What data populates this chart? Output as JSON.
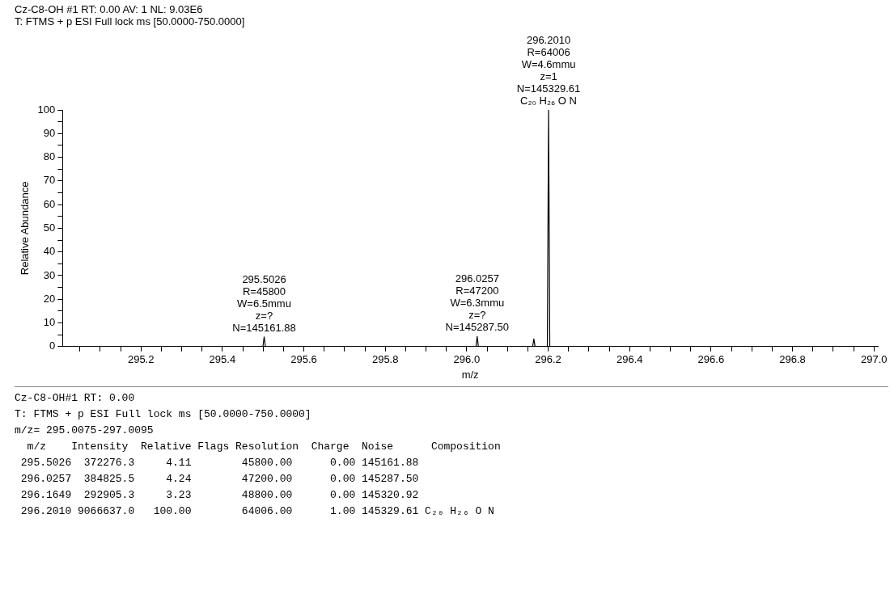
{
  "chart_data": {
    "type": "line",
    "title": "Cz-C8-OH #1  RT: 0.00  AV: 1  NL: 9.03E6",
    "subtitle": "T: FTMS + p ESI Full lock ms [50.0000-750.0000]",
    "xlabel": "m/z",
    "ylabel": "Relative Abundance",
    "x": [
      295.0075,
      295.4996,
      295.5026,
      295.5056,
      296.0227,
      296.0257,
      296.0287,
      296.1619,
      296.1649,
      296.1679,
      296.198,
      296.201,
      296.204,
      297.0095
    ],
    "series": [
      {
        "color": "#000000",
        "values": [
          0,
          0,
          4.11,
          0,
          0,
          4.24,
          0,
          0,
          3.23,
          0,
          0,
          100,
          0,
          0
        ]
      }
    ],
    "xlim": [
      295.0075,
      297.0095
    ],
    "xticks": [
      {
        "value": 295.05,
        "label": null
      },
      {
        "value": 295.1,
        "label": null
      },
      {
        "value": 295.15,
        "label": null
      },
      295.2,
      {
        "value": 295.25,
        "label": null
      },
      {
        "value": 295.3,
        "label": null
      },
      {
        "value": 295.35,
        "label": null
      },
      295.4,
      {
        "value": 295.45,
        "label": null
      },
      {
        "value": 295.5,
        "label": null
      },
      {
        "value": 295.55,
        "label": null
      },
      295.6,
      {
        "value": 295.65,
        "label": null
      },
      {
        "value": 295.7,
        "label": null
      },
      {
        "value": 295.75,
        "label": null
      },
      295.8,
      {
        "value": 295.85,
        "label": null
      },
      {
        "value": 295.9,
        "label": null
      },
      {
        "value": 295.95,
        "label": null
      },
      {
        "value": 296,
        "label": "296.0"
      },
      {
        "value": 296.05,
        "label": null
      },
      {
        "value": 296.1,
        "label": null
      },
      {
        "value": 296.15,
        "label": null
      },
      296.2,
      {
        "value": 296.25,
        "label": null
      },
      {
        "value": 296.3,
        "label": null
      },
      {
        "value": 296.35,
        "label": null
      },
      296.4,
      {
        "value": 296.45,
        "label": null
      },
      {
        "value": 296.5,
        "label": null
      },
      {
        "value": 296.55,
        "label": null
      },
      296.6,
      {
        "value": 296.65,
        "label": null
      },
      {
        "value": 296.7,
        "label": null
      },
      {
        "value": 296.75,
        "label": null
      },
      296.8,
      {
        "value": 296.85,
        "label": null
      },
      {
        "value": 296.9,
        "label": null
      },
      {
        "value": 296.95,
        "label": null
      },
      {
        "value": 297,
        "label": "297.0"
      }
    ],
    "ylim": [
      0,
      100
    ],
    "yticks": [
      0,
      {
        "value": 5,
        "label": null
      },
      10,
      {
        "value": 15,
        "label": null
      },
      20,
      {
        "value": 25,
        "label": null
      },
      30,
      {
        "value": 35,
        "label": null
      },
      40,
      {
        "value": 45,
        "label": null
      },
      50,
      {
        "value": 55,
        "label": null
      },
      60,
      {
        "value": 65,
        "label": null
      },
      70,
      {
        "value": 75,
        "label": null
      },
      80,
      {
        "value": 85,
        "label": null
      },
      90,
      {
        "value": 95,
        "label": null
      },
      100
    ],
    "grid": false,
    "legend": false,
    "marker": "none",
    "line_style": "solid",
    "annotations": [
      {
        "text": "295.5026\nR=45800\nW=6.5mmu\nz=?\nN=145161.88",
        "x": 295.5026,
        "y": 4.11
      },
      {
        "text": "296.0257\nR=47200\nW=6.3mmu\nz=?\nN=145287.50",
        "x": 296.0257,
        "y": 4.24
      },
      {
        "text": "296.2010\nR=64006\nW=4.6mmu\nz=1\nN=145329.61\nC₂₀ H₂₆ O N",
        "x": 296.201,
        "y": 100
      },
      "Cz-C8-OH#1 RT: 0.00",
      "T: FTMS + p ESI Full lock ms [50.0000-750.0000]",
      "m/z= 295.0075-297.0095",
      "  m/z    Intensity  Relative Flags Resolution  Charge  Noise      Composition",
      " 295.5026  372276.3     4.11        45800.00      0.00 145161.88",
      " 296.0257  384825.5     4.24        47200.00      0.00 145287.50",
      " 296.1649  292905.3     3.23        48800.00      0.00 145320.92",
      " 296.2010 9066637.0   100.00        64006.00      1.00 145329.61 C₂₀ H₂₆ O N"
    ]
  }
}
